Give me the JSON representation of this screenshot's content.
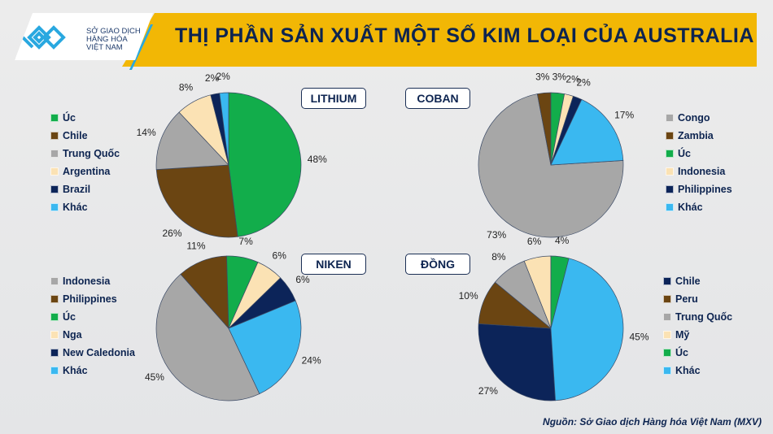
{
  "header": {
    "title": "THỊ PHẦN SẢN XUẤT MỘT SỐ KIM LOẠI CỦA AUSTRALIA",
    "logo_text": [
      "SỞ GIAO DỊCH",
      "HÀNG HÓA",
      "VIỆT NAM"
    ]
  },
  "source": "Nguồn: Sở Giao dịch Hàng hóa Việt Nam (MXV)",
  "colors": {
    "green": "#12ad4b",
    "brown": "#6b4512",
    "gray": "#a7a7a7",
    "cream": "#fbe2b4",
    "navy": "#0c2459",
    "lightblue": "#3ab8f0",
    "title_bg": "#f2b705"
  },
  "chart_data": [
    {
      "type": "pie",
      "title": "LITHIUM",
      "categories": [
        "Úc",
        "Chile",
        "Trung Quốc",
        "Argentina",
        "Brazil",
        "Khác"
      ],
      "values": [
        48,
        26,
        14,
        8,
        2,
        2
      ],
      "labels": [
        "48%",
        "26%",
        "14%",
        "8%",
        "2%",
        "2%"
      ],
      "colors": [
        "#12ad4b",
        "#6b4512",
        "#a7a7a7",
        "#fbe2b4",
        "#0c2459",
        "#3ab8f0"
      ],
      "legend": "left"
    },
    {
      "type": "pie",
      "title": "COBAN",
      "categories": [
        "Congo",
        "Zambia",
        "Úc",
        "Indonesia",
        "Philippines",
        "Khác"
      ],
      "values": [
        73,
        3,
        3,
        2,
        2,
        17
      ],
      "labels": [
        "73%",
        "3%",
        "3%",
        "2%",
        "2%",
        "17%"
      ],
      "colors": [
        "#a7a7a7",
        "#6b4512",
        "#12ad4b",
        "#fbe2b4",
        "#0c2459",
        "#3ab8f0"
      ],
      "legend": "right"
    },
    {
      "type": "pie",
      "title": "NIKEN",
      "categories": [
        "Indonesia",
        "Philippines",
        "Úc",
        "Nga",
        "New Caledonia",
        "Khác"
      ],
      "values": [
        45,
        11,
        7,
        6,
        6,
        24
      ],
      "labels": [
        "45%",
        "11%",
        "7%",
        "6%",
        "6%",
        "24%"
      ],
      "colors": [
        "#a7a7a7",
        "#6b4512",
        "#12ad4b",
        "#fbe2b4",
        "#0c2459",
        "#3ab8f0"
      ],
      "legend": "left"
    },
    {
      "type": "pie",
      "title": "ĐỒNG",
      "categories": [
        "Chile",
        "Peru",
        "Trung Quốc",
        "Mỹ",
        "Úc",
        "Khác"
      ],
      "values": [
        27,
        10,
        8,
        6,
        4,
        45
      ],
      "labels": [
        "27%",
        "10%",
        "8%",
        "6%",
        "4%",
        "45%"
      ],
      "colors": [
        "#0c2459",
        "#6b4512",
        "#a7a7a7",
        "#fbe2b4",
        "#12ad4b",
        "#3ab8f0"
      ],
      "legend": "right"
    }
  ]
}
